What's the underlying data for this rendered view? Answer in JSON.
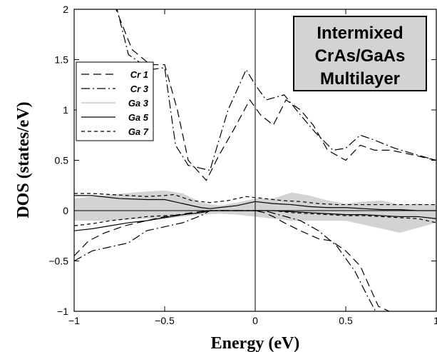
{
  "chart_data": {
    "type": "line",
    "xlabel": "Energy (eV)",
    "ylabel": "DOS (states/eV)",
    "xlim": [
      -1,
      1
    ],
    "ylim": [
      -1,
      2
    ],
    "xticks": [
      -1,
      -0.5,
      0,
      0.5,
      1
    ],
    "yticks": [
      -1,
      -0.5,
      0,
      0.5,
      1,
      1.5,
      2
    ],
    "xtick_labels": [
      "−1",
      "−0.5",
      "0",
      "0.5",
      "1"
    ],
    "ytick_labels": [
      "−1",
      "−0.5",
      "0",
      "0.5",
      "1",
      "1.5",
      "2"
    ],
    "grid": false,
    "legend_position": "left",
    "annotation": [
      "Intermixed",
      "CrAs/GaAs",
      "Multilayer"
    ],
    "shaded_band": {
      "name": "Ga 3",
      "x": [
        -1,
        -0.9,
        -0.8,
        -0.6,
        -0.5,
        -0.4,
        -0.3,
        -0.2,
        -0.1,
        0,
        0.1,
        0.2,
        0.3,
        0.4,
        0.5,
        0.6,
        0.7,
        0.8,
        0.9,
        1
      ],
      "upper": [
        0.12,
        0.14,
        0.16,
        0.19,
        0.2,
        0.17,
        0.08,
        0.05,
        0.08,
        0.12,
        0.12,
        0.18,
        0.15,
        0.1,
        0.07,
        0.09,
        0.1,
        0.06,
        0.07,
        0.06
      ],
      "lower": [
        -0.1,
        -0.1,
        -0.1,
        -0.08,
        -0.08,
        -0.06,
        -0.04,
        -0.03,
        -0.04,
        -0.06,
        -0.08,
        -0.1,
        -0.1,
        -0.1,
        -0.1,
        -0.14,
        -0.18,
        -0.22,
        -0.17,
        -0.12
      ]
    },
    "series": [
      {
        "name": "Cr 1",
        "dash": "11,6",
        "x": [
          -1,
          -0.92,
          -0.83,
          -0.72,
          -0.6,
          -0.5,
          -0.42,
          -0.35,
          -0.25,
          -0.15,
          -0.05,
          0,
          0.05,
          0.1,
          0.16,
          0.25,
          0.35,
          0.42,
          0.5,
          0.58,
          0.68,
          0.8,
          0.9,
          1
        ],
        "y": [
          -0.45,
          -0.3,
          -0.22,
          -0.15,
          -0.1,
          -0.06,
          -0.04,
          -0.02,
          0,
          0,
          0,
          0,
          -0.02,
          -0.06,
          -0.12,
          -0.2,
          -0.28,
          -0.3,
          -0.4,
          -0.55,
          -0.95,
          -1.05,
          -1.05,
          -1.05
        ]
      },
      {
        "name": "Cr 1 (up)",
        "dash": "11,6",
        "x": [
          -0.78,
          -0.68,
          -0.58,
          -0.5,
          -0.43,
          -0.37,
          -0.27,
          -0.2,
          -0.12,
          -0.03,
          0.03,
          0.1,
          0.17,
          0.25,
          0.32,
          0.4,
          0.5,
          0.58,
          0.66,
          0.75,
          0.88,
          1
        ],
        "y": [
          2.05,
          1.6,
          1.45,
          1.45,
          1.0,
          0.5,
          0.3,
          0.55,
          0.8,
          1.1,
          0.95,
          0.85,
          1.1,
          1.0,
          0.85,
          0.6,
          0.5,
          0.65,
          0.6,
          0.6,
          0.55,
          0.5
        ]
      },
      {
        "name": "Cr 3",
        "dash": "12,4,2,4",
        "x": [
          -1,
          -0.9,
          -0.8,
          -0.7,
          -0.6,
          -0.5,
          -0.4,
          -0.3,
          -0.25,
          -0.15,
          -0.05,
          0,
          0.05,
          0.15,
          0.25,
          0.35,
          0.45,
          0.55,
          0.62,
          0.68
        ],
        "y": [
          -0.5,
          -0.4,
          -0.36,
          -0.32,
          -0.2,
          -0.16,
          -0.12,
          -0.05,
          0,
          0,
          0,
          0,
          0,
          -0.05,
          -0.1,
          -0.2,
          -0.35,
          -0.6,
          -0.85,
          -1.05
        ]
      },
      {
        "name": "Cr 3 (up)",
        "dash": "12,4,2,4",
        "x": [
          -0.77,
          -0.7,
          -0.58,
          -0.5,
          -0.44,
          -0.37,
          -0.25,
          -0.15,
          -0.05,
          0,
          0.06,
          0.16,
          0.25,
          0.33,
          0.43,
          0.5,
          0.58,
          0.66,
          0.77,
          0.9,
          1
        ],
        "y": [
          2.05,
          1.55,
          1.4,
          1.42,
          0.65,
          0.45,
          0.4,
          1.0,
          1.4,
          1.25,
          1.1,
          1.15,
          0.95,
          0.78,
          0.6,
          0.62,
          0.75,
          0.7,
          0.62,
          0.55,
          0.5
        ]
      },
      {
        "name": "Ga 5",
        "dash": "",
        "x": [
          -1,
          -0.9,
          -0.75,
          -0.6,
          -0.5,
          -0.4,
          -0.3,
          -0.25,
          -0.2,
          -0.1,
          0,
          0.1,
          0.2,
          0.3,
          0.4,
          0.5,
          0.6,
          0.7,
          0.8,
          0.9,
          1
        ],
        "y": [
          0.15,
          0.15,
          0.12,
          0.11,
          0.11,
          0.07,
          0.03,
          0.02,
          0.03,
          0.05,
          0.09,
          0.07,
          0.06,
          0.04,
          0.03,
          0.03,
          0.02,
          0.01,
          0.01,
          0.0,
          0.0
        ]
      },
      {
        "name": "Ga 5 (dn)",
        "dash": "",
        "x": [
          -1,
          -0.9,
          -0.8,
          -0.7,
          -0.6,
          -0.5,
          -0.4,
          -0.3,
          -0.25,
          -0.2,
          -0.1,
          0,
          0.1,
          0.2,
          0.3,
          0.4,
          0.5,
          0.6,
          0.7,
          0.8,
          0.9,
          1
        ],
        "y": [
          -0.2,
          -0.18,
          -0.15,
          -0.12,
          -0.1,
          -0.07,
          -0.04,
          -0.02,
          0,
          0,
          0,
          0,
          0,
          -0.01,
          -0.02,
          -0.03,
          -0.04,
          -0.04,
          -0.05,
          -0.06,
          -0.06,
          -0.08
        ]
      },
      {
        "name": "Ga 7",
        "dash": "5,4",
        "x": [
          -1,
          -0.9,
          -0.8,
          -0.7,
          -0.6,
          -0.5,
          -0.45,
          -0.35,
          -0.25,
          -0.15,
          -0.05,
          0.05,
          0.15,
          0.25,
          0.35,
          0.45,
          0.55,
          0.65,
          0.75,
          0.85,
          1
        ],
        "y": [
          0.17,
          0.17,
          0.16,
          0.15,
          0.14,
          0.15,
          0.16,
          0.1,
          0.08,
          0.1,
          0.14,
          0.12,
          0.1,
          0.09,
          0.07,
          0.06,
          0.06,
          0.06,
          0.06,
          0.06,
          0.06
        ]
      },
      {
        "name": "Ga 7 (dn)",
        "dash": "5,4",
        "x": [
          -1,
          -0.9,
          -0.8,
          -0.7,
          -0.6,
          -0.5,
          -0.4,
          -0.3,
          -0.25,
          -0.2,
          -0.1,
          0,
          0.1,
          0.2,
          0.3,
          0.4,
          0.5,
          0.6,
          0.7,
          0.8,
          0.9,
          1
        ],
        "y": [
          -0.15,
          -0.13,
          -0.1,
          -0.08,
          -0.06,
          -0.05,
          -0.04,
          -0.02,
          0,
          0,
          0,
          0,
          0,
          -0.02,
          -0.03,
          -0.04,
          -0.05,
          -0.05,
          -0.06,
          -0.07,
          -0.08,
          -0.12
        ]
      }
    ],
    "legend": [
      {
        "label": "Cr 1",
        "dash": "11,6",
        "kind": "line"
      },
      {
        "label": "Cr 3",
        "dash": "12,4,2,4",
        "kind": "line"
      },
      {
        "label": "Ga 3",
        "dash": "",
        "kind": "band"
      },
      {
        "label": "Ga 5",
        "dash": "",
        "kind": "line"
      },
      {
        "label": "Ga 7",
        "dash": "5,4",
        "kind": "line"
      }
    ]
  }
}
